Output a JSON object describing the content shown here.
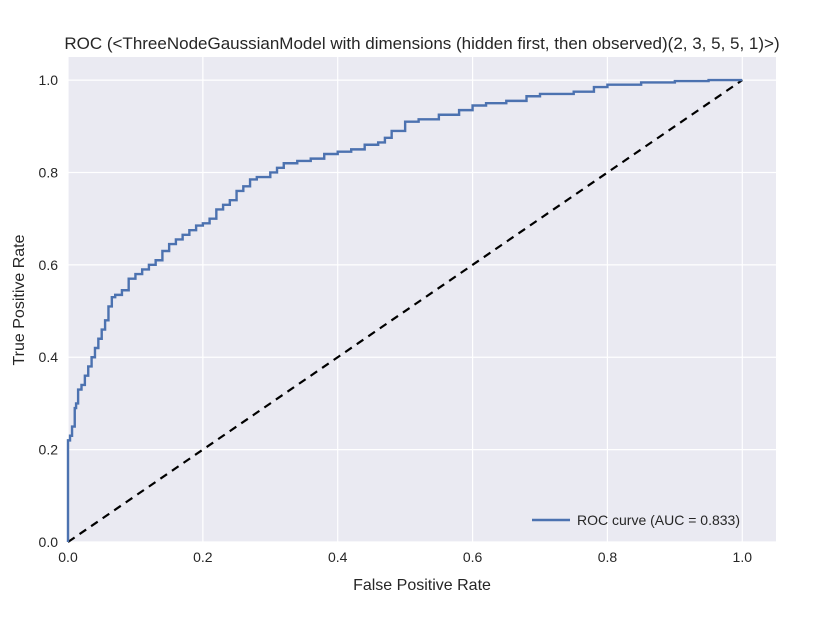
{
  "chart_data": {
    "type": "line",
    "title": "ROC (<ThreeNodeGaussianModel with dimensions (hidden first, then observed)(2, 3, 5, 5, 1)>)",
    "xlabel": "False Positive Rate",
    "ylabel": "True Positive Rate",
    "xlim": [
      0.0,
      1.05
    ],
    "ylim": [
      0.0,
      1.05
    ],
    "xticks": [
      0.0,
      0.2,
      0.4,
      0.6,
      0.8,
      1.0
    ],
    "yticks": [
      0.0,
      0.2,
      0.4,
      0.6,
      0.8,
      1.0
    ],
    "xtick_labels": [
      "0.0",
      "0.2",
      "0.4",
      "0.6",
      "0.8",
      "1.0"
    ],
    "ytick_labels": [
      "0.0",
      "0.2",
      "0.4",
      "0.6",
      "0.8",
      "1.0"
    ],
    "grid": true,
    "legend_position": "lower-right",
    "background_color": "#eaeaf2",
    "grid_color": "#ffffff",
    "series": [
      {
        "name": "ROC curve (AUC = 0.833)",
        "color": "#4c72b0",
        "style": "solid",
        "x": [
          0.0,
          0.0,
          0.003,
          0.006,
          0.01,
          0.012,
          0.015,
          0.02,
          0.025,
          0.03,
          0.035,
          0.04,
          0.045,
          0.05,
          0.055,
          0.06,
          0.065,
          0.07,
          0.08,
          0.09,
          0.1,
          0.11,
          0.12,
          0.13,
          0.14,
          0.15,
          0.16,
          0.17,
          0.18,
          0.19,
          0.2,
          0.21,
          0.22,
          0.23,
          0.24,
          0.25,
          0.26,
          0.27,
          0.28,
          0.3,
          0.31,
          0.32,
          0.34,
          0.36,
          0.38,
          0.4,
          0.42,
          0.44,
          0.46,
          0.47,
          0.48,
          0.5,
          0.52,
          0.55,
          0.58,
          0.6,
          0.62,
          0.65,
          0.68,
          0.7,
          0.74,
          0.75,
          0.78,
          0.8,
          0.85,
          0.9,
          0.95,
          1.0
        ],
        "y": [
          0.0,
          0.22,
          0.23,
          0.25,
          0.29,
          0.3,
          0.33,
          0.34,
          0.36,
          0.38,
          0.4,
          0.42,
          0.44,
          0.46,
          0.48,
          0.51,
          0.53,
          0.535,
          0.545,
          0.57,
          0.58,
          0.59,
          0.6,
          0.61,
          0.63,
          0.645,
          0.655,
          0.665,
          0.675,
          0.685,
          0.69,
          0.7,
          0.72,
          0.73,
          0.74,
          0.76,
          0.77,
          0.785,
          0.79,
          0.8,
          0.81,
          0.82,
          0.825,
          0.83,
          0.84,
          0.845,
          0.85,
          0.86,
          0.865,
          0.875,
          0.89,
          0.91,
          0.915,
          0.925,
          0.935,
          0.945,
          0.95,
          0.955,
          0.965,
          0.97,
          0.97,
          0.975,
          0.985,
          0.99,
          0.995,
          0.998,
          1.0,
          1.0
        ]
      },
      {
        "name": "",
        "color": "#000000",
        "style": "dashed",
        "x": [
          0.0,
          1.0
        ],
        "y": [
          0.0,
          1.0
        ]
      }
    ]
  }
}
